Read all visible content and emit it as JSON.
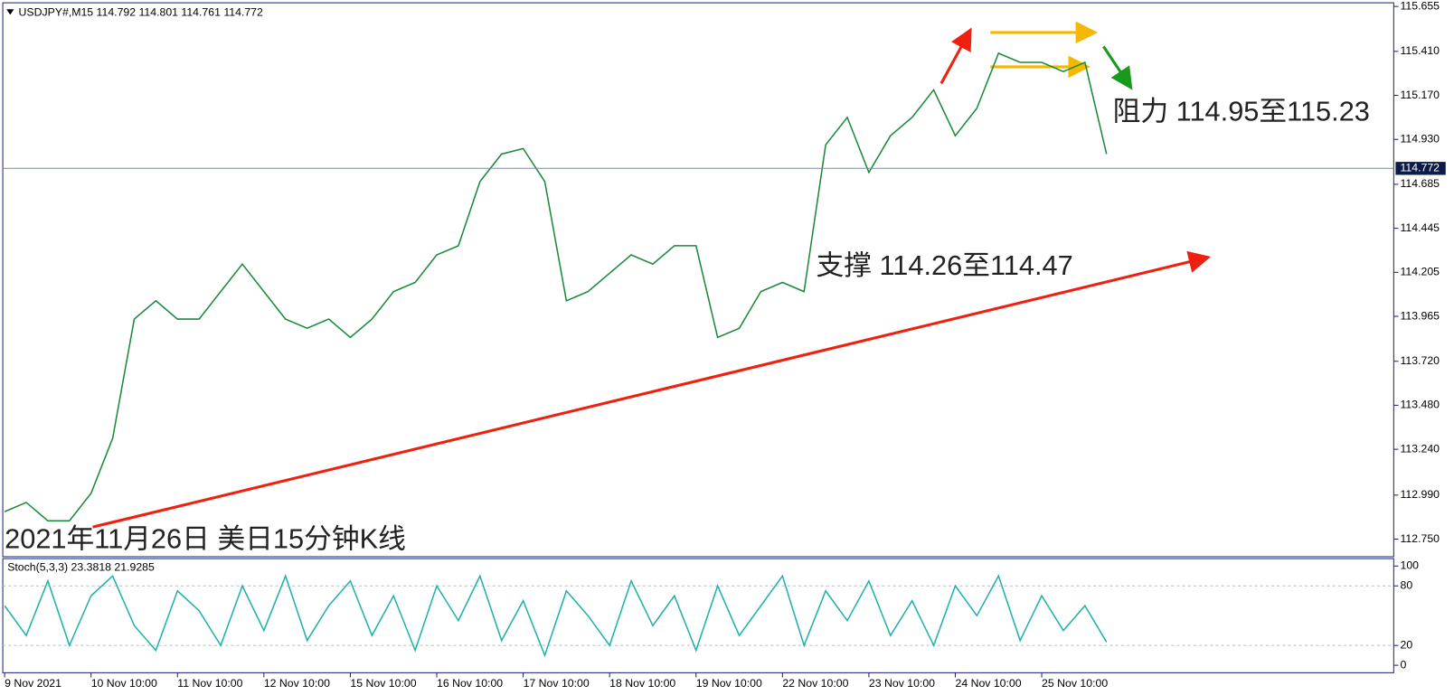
{
  "chart_data": [
    {
      "type": "line",
      "title": "USDJPY#,M15  114.792 114.801 114.761 114.772",
      "categories": [
        "9 Nov 2021",
        null,
        null,
        null,
        "10 Nov 10:00",
        null,
        null,
        null,
        "11 Nov 10:00",
        null,
        null,
        null,
        "12 Nov 10:00",
        null,
        null,
        null,
        "15 Nov 10:00",
        null,
        null,
        null,
        "16 Nov 10:00",
        null,
        null,
        null,
        "17 Nov 10:00",
        null,
        null,
        null,
        "18 Nov 10:00",
        null,
        null,
        null,
        "19 Nov 10:00",
        null,
        null,
        null,
        "22 Nov 10:00",
        null,
        null,
        null,
        "23 Nov 10:00",
        null,
        null,
        null,
        "24 Nov 10:00",
        null,
        null,
        null,
        "25 Nov 10:00",
        null,
        null,
        null
      ],
      "values": [
        112.9,
        112.95,
        112.85,
        112.85,
        113.0,
        113.3,
        113.95,
        114.05,
        113.95,
        113.95,
        114.1,
        114.25,
        114.1,
        113.95,
        113.9,
        113.95,
        113.85,
        113.95,
        114.1,
        114.15,
        114.3,
        114.35,
        114.7,
        114.85,
        114.88,
        114.7,
        114.05,
        114.1,
        114.2,
        114.3,
        114.25,
        114.35,
        114.35,
        113.85,
        113.9,
        114.1,
        114.15,
        114.1,
        114.9,
        115.05,
        114.75,
        114.95,
        115.05,
        115.2,
        114.95,
        115.1,
        115.4,
        115.35,
        115.35,
        115.3,
        115.35,
        114.85
      ],
      "color": "#1a8a3a",
      "ylim": [
        112.654,
        115.675
      ],
      "yticks": [
        {
          "value": 112.75,
          "label": "112.750"
        },
        {
          "value": 112.99,
          "label": "112.990"
        },
        {
          "value": 113.24,
          "label": "113.240"
        },
        {
          "value": 113.48,
          "label": "113.480"
        },
        {
          "value": 113.72,
          "label": "113.720"
        },
        113.965,
        114.205,
        114.445,
        114.685,
        {
          "value": 114.93,
          "label": "114.930"
        },
        {
          "value": 115.17,
          "label": "115.170"
        },
        {
          "value": 115.41,
          "label": "115.410"
        },
        115.655
      ],
      "current_price": 114.772,
      "annotations": [
        "阻力 114.95至115.23",
        "支撑 114.26至114.47",
        "2021年11月26日 美日15分钟K线"
      ]
    },
    {
      "type": "line",
      "title": "Stoch(5,3,3) 23.3818 21.9285",
      "values": [
        60,
        30,
        85,
        20,
        70,
        90,
        40,
        15,
        75,
        55,
        20,
        80,
        35,
        90,
        25,
        60,
        85,
        30,
        70,
        15,
        80,
        45,
        90,
        25,
        65,
        10,
        75,
        50,
        20,
        85,
        40,
        70,
        15,
        80,
        30,
        60,
        90,
        20,
        75,
        45,
        85,
        30,
        65,
        20,
        80,
        50,
        90,
        25,
        70,
        35,
        60,
        23.4
      ],
      "color": "#20b2aa",
      "ylim": [
        -7.5,
        107.5
      ],
      "yticks": [
        0,
        20,
        80,
        100
      ]
    }
  ]
}
